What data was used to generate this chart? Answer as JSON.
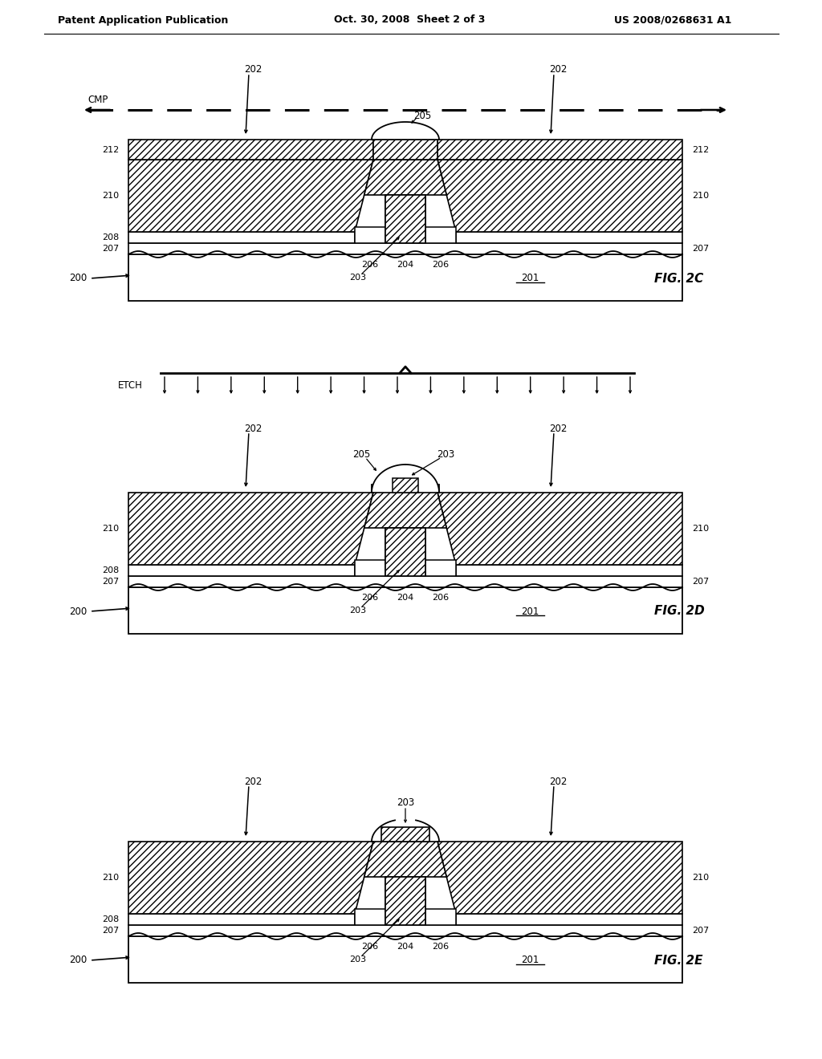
{
  "header_left": "Patent Application Publication",
  "header_center": "Oct. 30, 2008  Sheet 2 of 3",
  "header_right": "US 2008/0268631 A1",
  "bg_color": "#ffffff"
}
